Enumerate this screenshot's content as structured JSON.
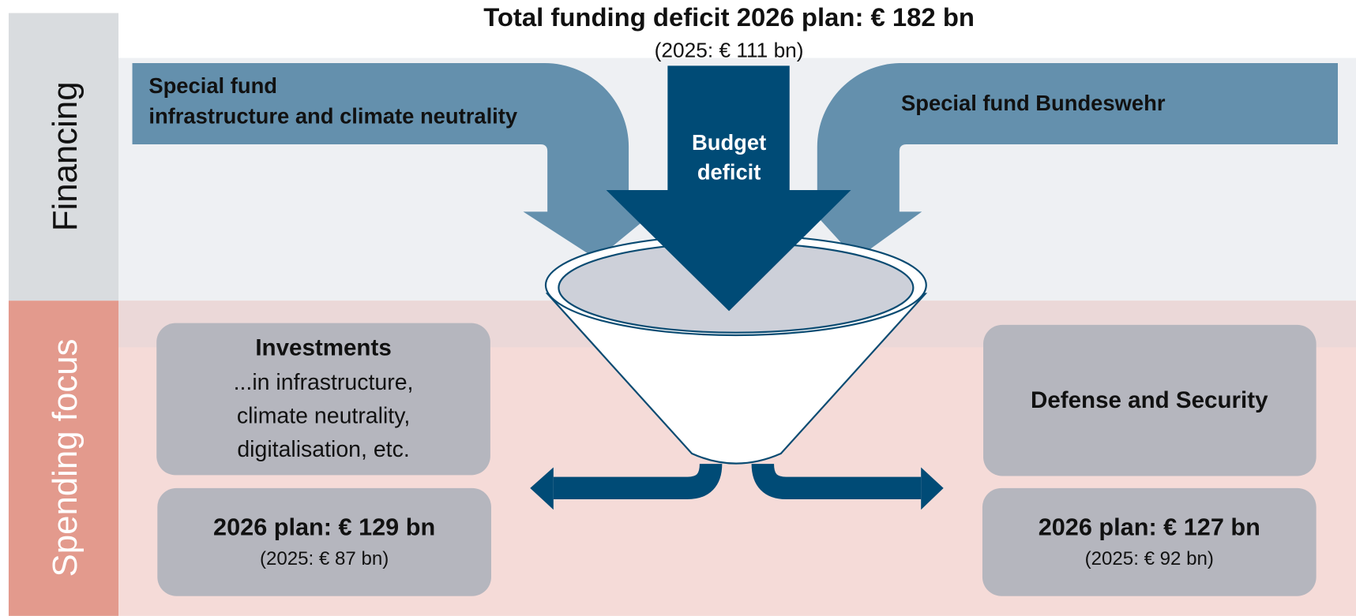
{
  "title": "Total funding deficit 2026 plan: € 182 bn",
  "subtitle": "(2025:  € 111 bn)",
  "sections": {
    "financing": "Financing",
    "spending": "Spending focus"
  },
  "sources": {
    "special_fund_infrastructure": {
      "lines": [
        "Special fund",
        "infrastructure and climate neutrality"
      ]
    },
    "budget_deficit": {
      "lines": [
        "Budget",
        "deficit"
      ]
    },
    "special_fund_bundeswehr": {
      "label": "Special fund Bundeswehr"
    }
  },
  "outputs": {
    "investments": {
      "heading": "Investments",
      "lines": [
        "...in infrastructure,",
        "climate neutrality,",
        "digitalisation, etc."
      ],
      "plan": "2026 plan: € 129 bn",
      "previous": "(2025: € 87 bn)"
    },
    "defense": {
      "heading": "Defense and Security",
      "plan": "2026 plan: € 127 bn",
      "previous": "(2025: € 92 bn)"
    }
  }
}
